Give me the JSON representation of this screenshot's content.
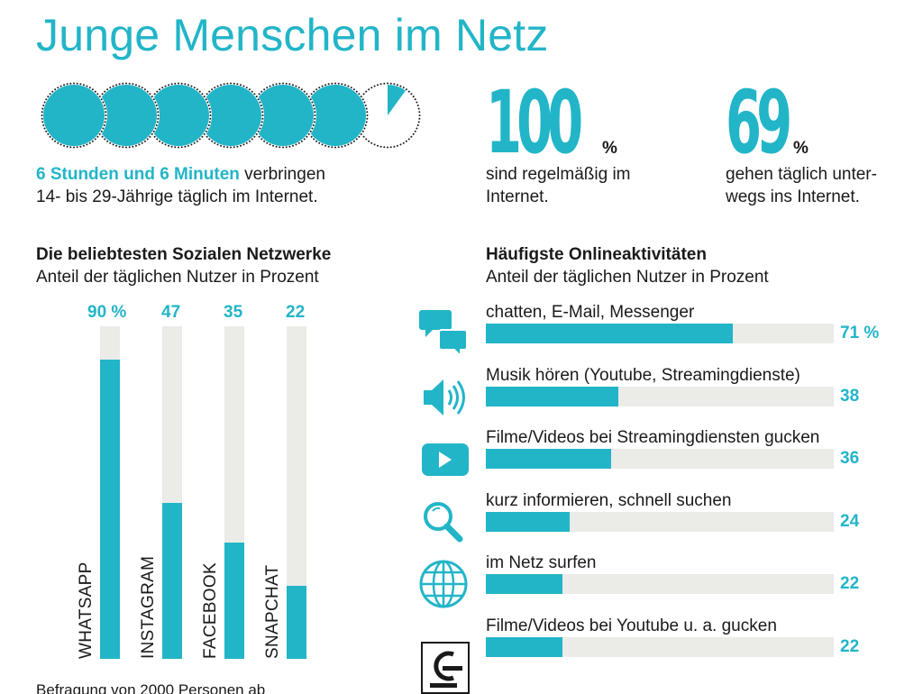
{
  "title": "Junge Menschen im Netz",
  "time": {
    "highlight": "6 Stunden und 6 Minuten",
    "rest_line1": " verbringen",
    "line2": "14- bis 29-Jährige täglich im Internet.",
    "full_hours": 6,
    "partial_hour_fraction": 0.1
  },
  "stats": [
    {
      "value": "100",
      "unit": "%",
      "line1": "sind regelmäßig im",
      "line2": "Internet."
    },
    {
      "value": "69",
      "unit": "%",
      "line1": "gehen täglich unter-",
      "line2": "wegs ins Internet."
    }
  ],
  "social": {
    "heading": "Die beliebtesten Sozialen Netzwerke",
    "subheading": "Anteil der täglichen Nutzer in Prozent"
  },
  "activities": {
    "heading": "Häufigste Onlineaktivitäten",
    "subheading": "Anteil der täglichen Nutzer in Prozent"
  },
  "chart_data": [
    {
      "type": "bar",
      "orientation": "vertical",
      "title": "Die beliebtesten Sozialen Netzwerke",
      "subtitle": "Anteil der täglichen Nutzer in Prozent",
      "categories": [
        "WHATSAPP",
        "INSTAGRAM",
        "FACEBOOK",
        "SNAPCHAT"
      ],
      "values": [
        90,
        47,
        35,
        22
      ],
      "value_labels": [
        "90 %",
        "47",
        "35",
        "22"
      ],
      "ylim": [
        0,
        100
      ],
      "color": "#22b5c8"
    },
    {
      "type": "bar",
      "orientation": "horizontal",
      "title": "Häufigste Onlineaktivitäten",
      "subtitle": "Anteil der täglichen Nutzer in Prozent",
      "categories": [
        "chatten, E-Mail, Messenger",
        "Musik hören (Youtube, Streamingdienste)",
        "Filme/Videos bei Streamingdiensten gucken",
        "kurz informieren, schnell suchen",
        "im Netz surfen",
        "Filme/Videos bei Youtube u. a. gucken"
      ],
      "values": [
        71,
        38,
        36,
        24,
        22,
        22
      ],
      "value_labels": [
        "71 %",
        "38",
        "36",
        "24",
        "22",
        "22"
      ],
      "icons": [
        "chat-bubbles-icon",
        "speaker-icon",
        "play-button-icon",
        "magnifier-icon",
        "globe-icon",
        "play-button-icon"
      ],
      "xlim": [
        0,
        100
      ],
      "color": "#22b5c8"
    }
  ],
  "footer": "Befragung von 2000 Personen ab",
  "colors": {
    "accent": "#22b5c8",
    "track": "#ebebe8",
    "text": "#1a1a1a"
  }
}
